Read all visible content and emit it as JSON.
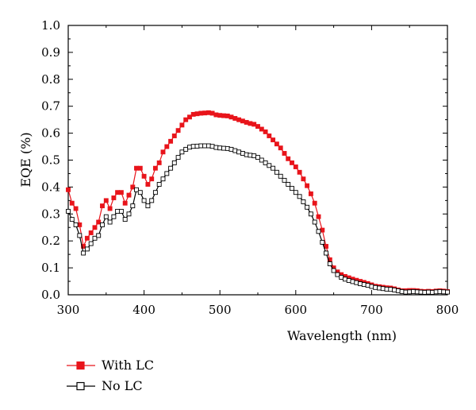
{
  "chart_data": {
    "type": "line",
    "title": "",
    "xlabel": "Wavelength (nm)",
    "ylabel": "EQE (%)",
    "xlim": [
      300,
      800
    ],
    "ylim": [
      0.0,
      1.0
    ],
    "x_ticks": [
      "300",
      "400",
      "500",
      "600",
      "700",
      "800"
    ],
    "y_ticks": [
      "0.0",
      "0.1",
      "0.2",
      "0.3",
      "0.4",
      "0.5",
      "0.6",
      "0.7",
      "0.8",
      "0.9",
      "1.0"
    ],
    "grid": false,
    "legend_position": "below",
    "series": [
      {
        "name": "With LC",
        "color": "#e8141b",
        "marker": "filled-square",
        "points": [
          [
            300,
            0.39
          ],
          [
            305,
            0.34
          ],
          [
            310,
            0.32
          ],
          [
            315,
            0.26
          ],
          [
            320,
            0.18
          ],
          [
            325,
            0.21
          ],
          [
            330,
            0.23
          ],
          [
            335,
            0.25
          ],
          [
            340,
            0.27
          ],
          [
            345,
            0.33
          ],
          [
            350,
            0.35
          ],
          [
            355,
            0.32
          ],
          [
            360,
            0.36
          ],
          [
            365,
            0.38
          ],
          [
            370,
            0.38
          ],
          [
            375,
            0.34
          ],
          [
            380,
            0.37
          ],
          [
            385,
            0.4
          ],
          [
            390,
            0.47
          ],
          [
            395,
            0.47
          ],
          [
            400,
            0.44
          ],
          [
            405,
            0.41
          ],
          [
            410,
            0.43
          ],
          [
            415,
            0.47
          ],
          [
            420,
            0.49
          ],
          [
            425,
            0.53
          ],
          [
            430,
            0.55
          ],
          [
            435,
            0.57
          ],
          [
            440,
            0.59
          ],
          [
            445,
            0.61
          ],
          [
            450,
            0.63
          ],
          [
            455,
            0.65
          ],
          [
            460,
            0.66
          ],
          [
            465,
            0.67
          ],
          [
            470,
            0.672
          ],
          [
            475,
            0.674
          ],
          [
            480,
            0.675
          ],
          [
            485,
            0.676
          ],
          [
            490,
            0.674
          ],
          [
            495,
            0.668
          ],
          [
            500,
            0.666
          ],
          [
            505,
            0.665
          ],
          [
            510,
            0.664
          ],
          [
            515,
            0.66
          ],
          [
            520,
            0.655
          ],
          [
            525,
            0.65
          ],
          [
            530,
            0.645
          ],
          [
            535,
            0.64
          ],
          [
            540,
            0.636
          ],
          [
            545,
            0.633
          ],
          [
            550,
            0.625
          ],
          [
            555,
            0.615
          ],
          [
            560,
            0.605
          ],
          [
            565,
            0.59
          ],
          [
            570,
            0.575
          ],
          [
            575,
            0.56
          ],
          [
            580,
            0.545
          ],
          [
            585,
            0.525
          ],
          [
            590,
            0.505
          ],
          [
            595,
            0.49
          ],
          [
            600,
            0.475
          ],
          [
            605,
            0.455
          ],
          [
            610,
            0.43
          ],
          [
            615,
            0.405
          ],
          [
            620,
            0.375
          ],
          [
            625,
            0.34
          ],
          [
            630,
            0.29
          ],
          [
            635,
            0.24
          ],
          [
            640,
            0.18
          ],
          [
            645,
            0.13
          ],
          [
            650,
            0.1
          ],
          [
            655,
            0.085
          ],
          [
            660,
            0.075
          ],
          [
            665,
            0.068
          ],
          [
            670,
            0.063
          ],
          [
            675,
            0.058
          ],
          [
            680,
            0.054
          ],
          [
            685,
            0.05
          ],
          [
            690,
            0.046
          ],
          [
            695,
            0.042
          ],
          [
            700,
            0.037
          ],
          [
            705,
            0.032
          ],
          [
            710,
            0.03
          ],
          [
            715,
            0.028
          ],
          [
            720,
            0.026
          ],
          [
            725,
            0.025
          ],
          [
            730,
            0.022
          ],
          [
            735,
            0.018
          ],
          [
            740,
            0.015
          ],
          [
            745,
            0.015
          ],
          [
            750,
            0.016
          ],
          [
            755,
            0.016
          ],
          [
            760,
            0.015
          ],
          [
            765,
            0.013
          ],
          [
            770,
            0.012
          ],
          [
            775,
            0.013
          ],
          [
            780,
            0.012
          ],
          [
            785,
            0.014
          ],
          [
            790,
            0.015
          ],
          [
            795,
            0.014
          ],
          [
            800,
            0.012
          ]
        ]
      },
      {
        "name": "No LC",
        "color": "#000000",
        "marker": "open-square",
        "points": [
          [
            300,
            0.31
          ],
          [
            305,
            0.28
          ],
          [
            310,
            0.26
          ],
          [
            315,
            0.22
          ],
          [
            320,
            0.155
          ],
          [
            325,
            0.17
          ],
          [
            330,
            0.19
          ],
          [
            335,
            0.21
          ],
          [
            340,
            0.22
          ],
          [
            345,
            0.26
          ],
          [
            350,
            0.29
          ],
          [
            355,
            0.27
          ],
          [
            360,
            0.29
          ],
          [
            365,
            0.31
          ],
          [
            370,
            0.31
          ],
          [
            375,
            0.28
          ],
          [
            380,
            0.3
          ],
          [
            385,
            0.33
          ],
          [
            390,
            0.39
          ],
          [
            395,
            0.38
          ],
          [
            400,
            0.35
          ],
          [
            405,
            0.33
          ],
          [
            410,
            0.35
          ],
          [
            415,
            0.38
          ],
          [
            420,
            0.41
          ],
          [
            425,
            0.43
          ],
          [
            430,
            0.45
          ],
          [
            435,
            0.47
          ],
          [
            440,
            0.49
          ],
          [
            445,
            0.51
          ],
          [
            450,
            0.53
          ],
          [
            455,
            0.54
          ],
          [
            460,
            0.548
          ],
          [
            465,
            0.551
          ],
          [
            470,
            0.552
          ],
          [
            475,
            0.553
          ],
          [
            480,
            0.553
          ],
          [
            485,
            0.553
          ],
          [
            490,
            0.551
          ],
          [
            495,
            0.547
          ],
          [
            500,
            0.545
          ],
          [
            505,
            0.544
          ],
          [
            510,
            0.543
          ],
          [
            515,
            0.54
          ],
          [
            520,
            0.535
          ],
          [
            525,
            0.53
          ],
          [
            530,
            0.525
          ],
          [
            535,
            0.52
          ],
          [
            540,
            0.518
          ],
          [
            545,
            0.516
          ],
          [
            550,
            0.51
          ],
          [
            555,
            0.5
          ],
          [
            560,
            0.49
          ],
          [
            565,
            0.48
          ],
          [
            570,
            0.47
          ],
          [
            575,
            0.455
          ],
          [
            580,
            0.44
          ],
          [
            585,
            0.425
          ],
          [
            590,
            0.41
          ],
          [
            595,
            0.395
          ],
          [
            600,
            0.38
          ],
          [
            605,
            0.365
          ],
          [
            610,
            0.345
          ],
          [
            615,
            0.325
          ],
          [
            620,
            0.3
          ],
          [
            625,
            0.27
          ],
          [
            630,
            0.235
          ],
          [
            635,
            0.195
          ],
          [
            640,
            0.155
          ],
          [
            645,
            0.115
          ],
          [
            650,
            0.09
          ],
          [
            655,
            0.075
          ],
          [
            660,
            0.065
          ],
          [
            665,
            0.058
          ],
          [
            670,
            0.053
          ],
          [
            675,
            0.049
          ],
          [
            680,
            0.045
          ],
          [
            685,
            0.041
          ],
          [
            690,
            0.038
          ],
          [
            695,
            0.035
          ],
          [
            700,
            0.031
          ],
          [
            705,
            0.027
          ],
          [
            710,
            0.025
          ],
          [
            715,
            0.023
          ],
          [
            720,
            0.021
          ],
          [
            725,
            0.02
          ],
          [
            730,
            0.018
          ],
          [
            735,
            0.015
          ],
          [
            740,
            0.012
          ],
          [
            745,
            0.01
          ],
          [
            750,
            0.011
          ],
          [
            755,
            0.012
          ],
          [
            760,
            0.011
          ],
          [
            765,
            0.01
          ],
          [
            770,
            0.009
          ],
          [
            775,
            0.01
          ],
          [
            780,
            0.009
          ],
          [
            785,
            0.011
          ],
          [
            790,
            0.012
          ],
          [
            795,
            0.011
          ],
          [
            800,
            0.01
          ]
        ]
      }
    ]
  }
}
